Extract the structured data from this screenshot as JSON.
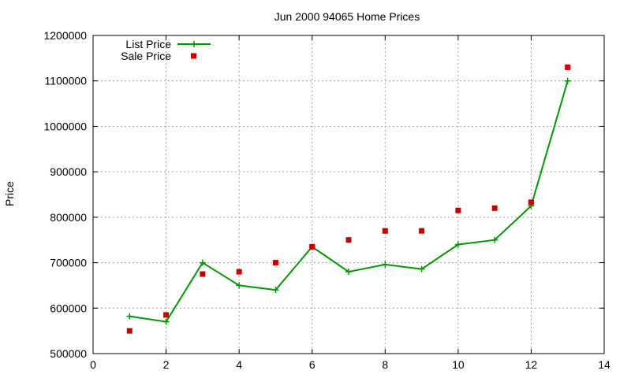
{
  "chart_data": {
    "type": "line",
    "title": "Jun 2000 94065 Home Prices",
    "xlabel": "",
    "ylabel": "Price",
    "xlim": [
      0,
      14
    ],
    "ylim": [
      500000,
      1200000
    ],
    "xticks": [
      0,
      2,
      4,
      6,
      8,
      10,
      12,
      14
    ],
    "yticks": [
      500000,
      600000,
      700000,
      800000,
      900000,
      1000000,
      1100000,
      1200000
    ],
    "grid": true,
    "legend_position": "top-left",
    "series": [
      {
        "name": "List Price",
        "style": "line-with-plus-markers",
        "color": "#009900",
        "x": [
          1,
          2,
          3,
          4,
          5,
          6,
          7,
          8,
          9,
          10,
          11,
          12,
          13
        ],
        "y": [
          582000,
          570000,
          700000,
          650000,
          640000,
          735000,
          680000,
          696000,
          686000,
          740000,
          750000,
          825000,
          1100000
        ]
      },
      {
        "name": "Sale Price",
        "style": "square-markers",
        "color": "#cc0000",
        "x": [
          1,
          2,
          3,
          4,
          5,
          6,
          7,
          8,
          9,
          10,
          11,
          12,
          13
        ],
        "y": [
          550000,
          585000,
          675000,
          680000,
          700000,
          735000,
          750000,
          770000,
          770000,
          815000,
          820000,
          833000,
          1130000
        ]
      }
    ]
  }
}
